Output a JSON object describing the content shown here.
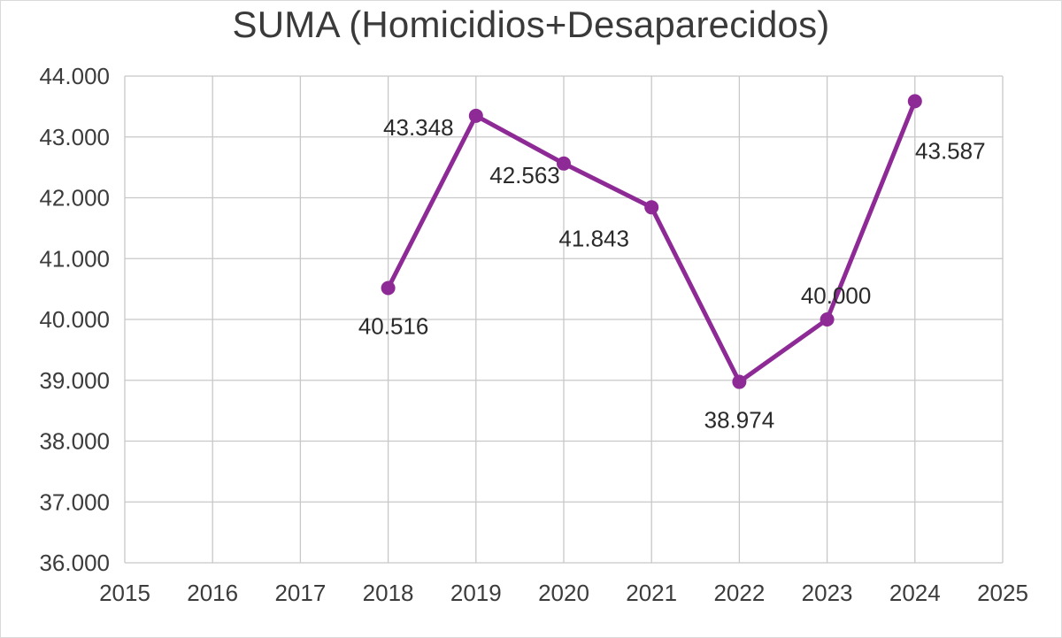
{
  "chart_data": {
    "type": "line",
    "title": "SUMA (Homicidios+Desaparecidos)",
    "xlabel": "",
    "ylabel": "",
    "x": [
      2018,
      2019,
      2020,
      2021,
      2022,
      2023,
      2024
    ],
    "series": [
      {
        "name": "SUMA (Homicidios+Desaparecidos)",
        "values": [
          40516,
          43348,
          42563,
          41843,
          38974,
          40000,
          43587
        ],
        "labels": [
          "40.516",
          "43.348",
          "42.563",
          "41.843",
          "38.974",
          "40.000",
          "43.587"
        ],
        "color": "#8e2a96"
      }
    ],
    "xlim": [
      2015,
      2025
    ],
    "ylim": [
      36000,
      44000
    ],
    "x_ticks": [
      "2015",
      "2016",
      "2017",
      "2018",
      "2019",
      "2020",
      "2021",
      "2022",
      "2023",
      "2024",
      "2025"
    ],
    "y_ticks": [
      "44.000",
      "43.000",
      "42.000",
      "41.000",
      "40.000",
      "39.000",
      "38.000",
      "37.000",
      "36.000"
    ],
    "grid": true,
    "legend": "none"
  },
  "colors": {
    "line": "#8e2a96",
    "grid": "#c8c8c8",
    "text": "#3c3c3c"
  }
}
